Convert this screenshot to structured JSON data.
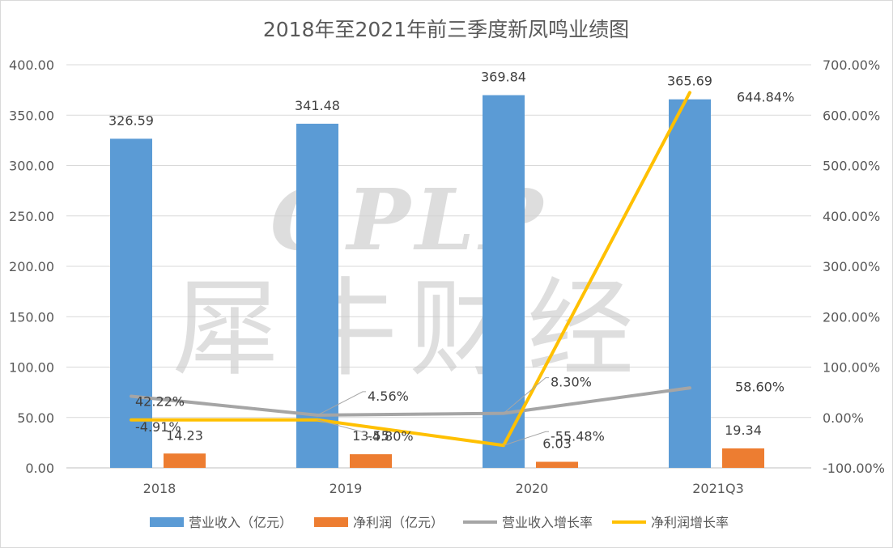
{
  "chart_data": {
    "type": "bar",
    "title": "2018年至2021年前三季度新凤鸣业绩图",
    "categories": [
      "2018",
      "2019",
      "2020",
      "2021Q3"
    ],
    "y_left": {
      "min": 0,
      "max": 400,
      "ticks": [
        "0.00",
        "50.00",
        "100.00",
        "150.00",
        "200.00",
        "250.00",
        "300.00",
        "350.00",
        "400.00"
      ]
    },
    "y_right": {
      "min": -100,
      "max": 700,
      "ticks": [
        "-100.00%",
        "0.00%",
        "100.00%",
        "200.00%",
        "300.00%",
        "400.00%",
        "500.00%",
        "600.00%",
        "700.00%"
      ]
    },
    "grid": true,
    "legend_position": "bottom",
    "series": [
      {
        "name": "营业收入（亿元）",
        "kind": "bar",
        "axis": "left",
        "color": "#5B9BD5",
        "values": [
          326.59,
          341.48,
          369.84,
          365.69
        ],
        "labels": [
          "326.59",
          "341.48",
          "369.84",
          "365.69"
        ]
      },
      {
        "name": "净利润（亿元）",
        "kind": "bar",
        "axis": "left",
        "color": "#ED7D31",
        "values": [
          14.23,
          13.55,
          6.03,
          19.34
        ],
        "labels": [
          "14.23",
          "13.55",
          "6.03",
          "19.34"
        ]
      },
      {
        "name": "营业收入增长率",
        "kind": "line",
        "axis": "right",
        "color": "#A5A5A5",
        "values": [
          42.22,
          4.56,
          8.3,
          58.6
        ],
        "labels": [
          "42.22%",
          "4.56%",
          "8.30%",
          "58.60%"
        ]
      },
      {
        "name": "净利润增长率",
        "kind": "line",
        "axis": "right",
        "color": "#FFC000",
        "values": [
          -4.91,
          -4.8,
          -55.48,
          644.84
        ],
        "labels": [
          "-4.91%",
          "-4.80%",
          "-55.48%",
          "644.84%"
        ]
      }
    ]
  },
  "watermark": {
    "latin": "GPLP",
    "cjk": "犀牛财经"
  }
}
